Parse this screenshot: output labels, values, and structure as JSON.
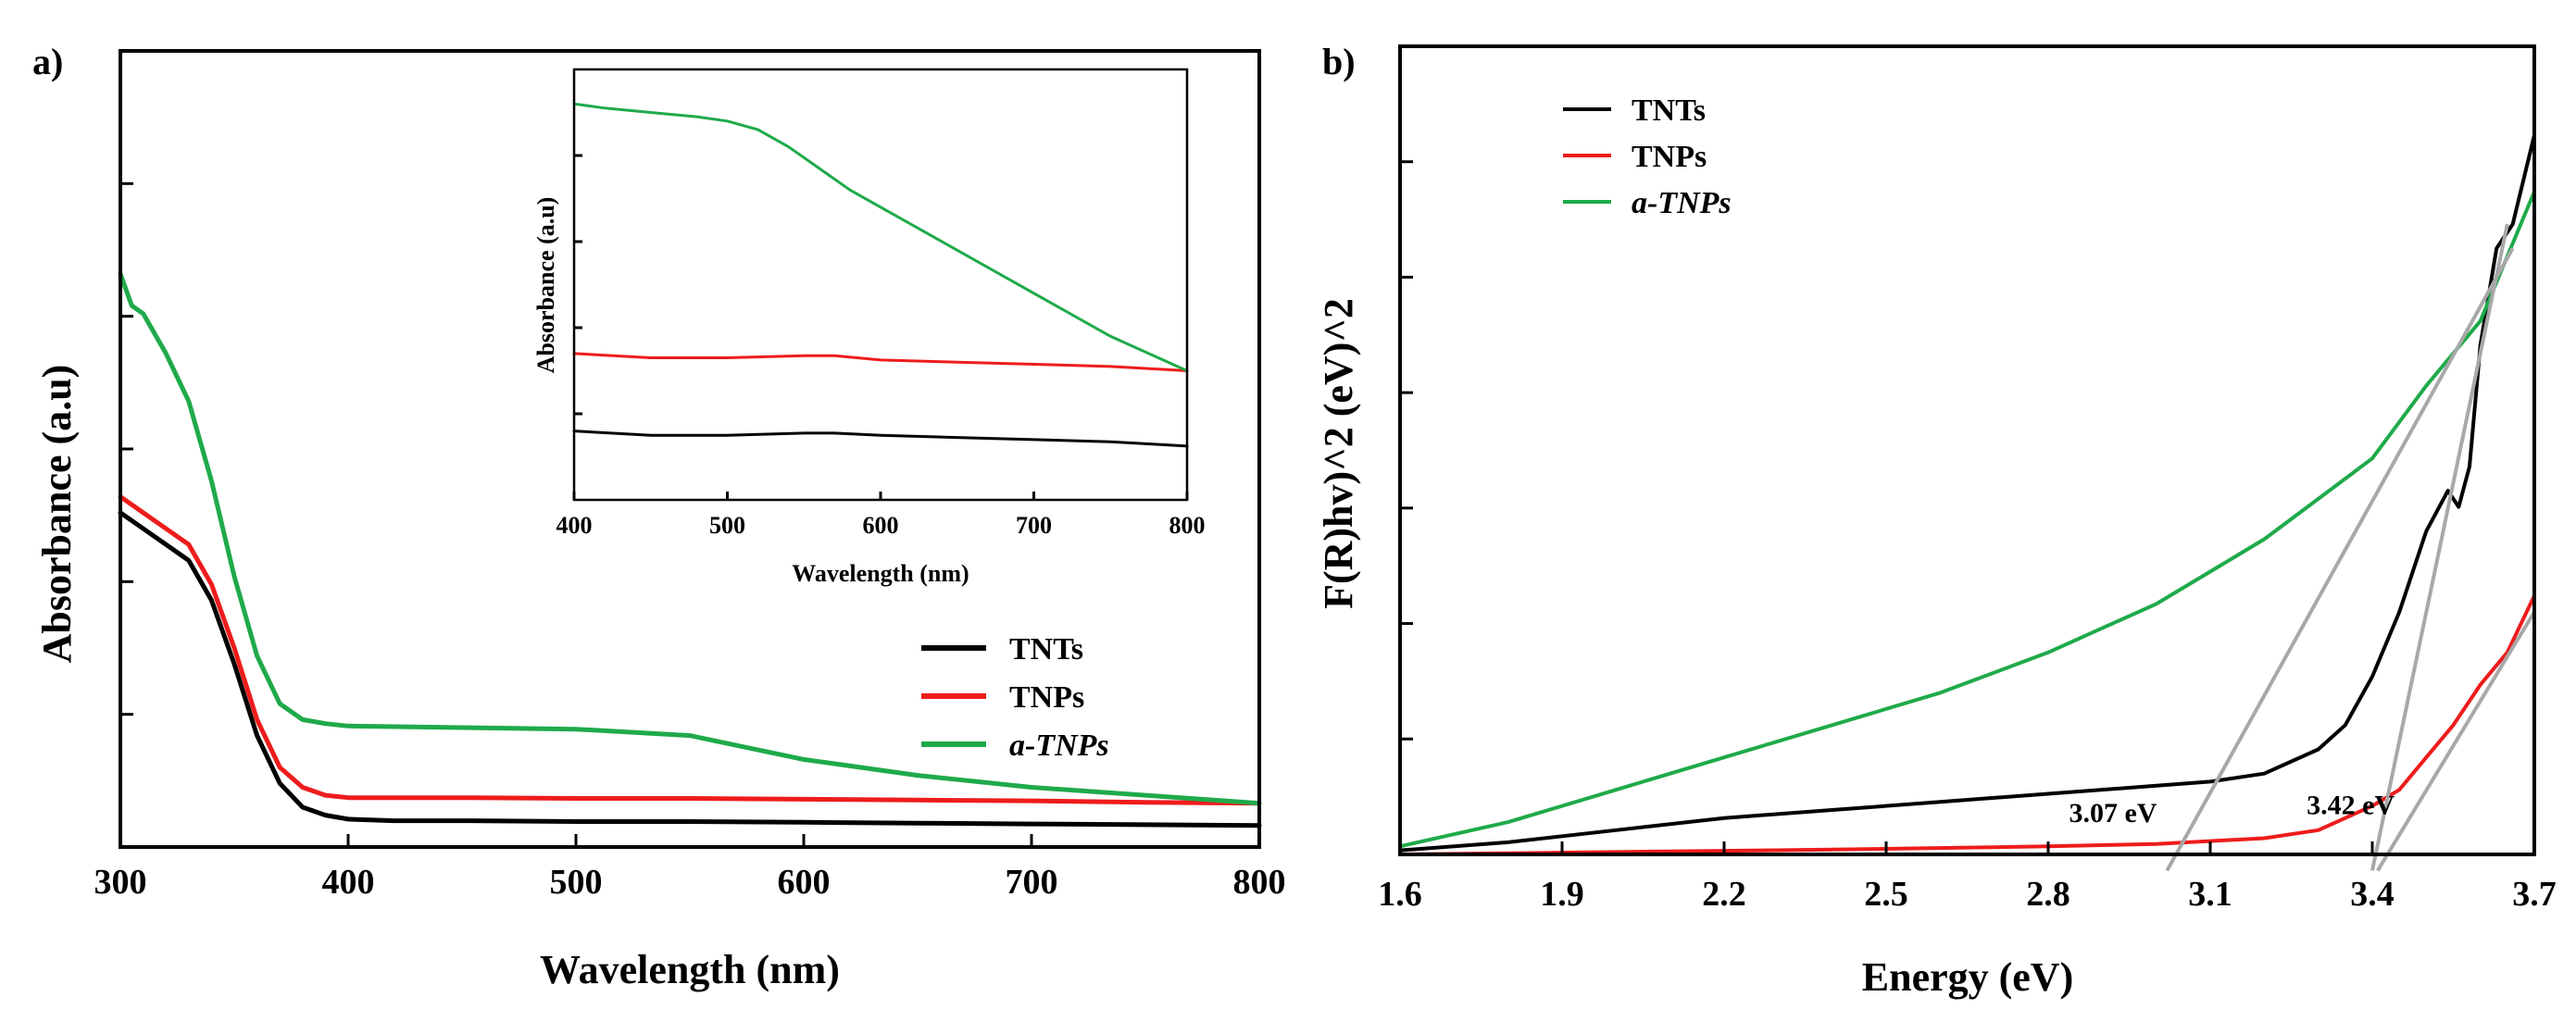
{
  "colors": {
    "TNTs": "#000000",
    "TNPs": "#ee1c1c",
    "a-TNPs": "#1faa4a",
    "fit_line": "#a8a8a8",
    "axis": "#000000"
  },
  "chart_data": [
    {
      "id": "panel-a",
      "type": "line",
      "panel_label": "a)",
      "title": "",
      "xlabel": "Wavelength (nm)",
      "ylabel": "Absorbance (a.u)",
      "xlim": [
        300,
        800
      ],
      "ylim": [
        0,
        1.0
      ],
      "xticks": [
        300,
        400,
        500,
        600,
        700,
        800
      ],
      "y_tick_labels_shown": false,
      "legend": {
        "placement": "right-middle",
        "entries": [
          "TNTs",
          "TNPs",
          "a-TNPs"
        ]
      },
      "series": [
        {
          "name": "TNTs",
          "color": "#000000",
          "x": [
            300,
            310,
            320,
            330,
            340,
            350,
            360,
            370,
            380,
            390,
            400,
            420,
            450,
            500,
            550,
            600,
            650,
            700,
            750,
            800
          ],
          "y": [
            0.42,
            0.4,
            0.38,
            0.36,
            0.31,
            0.23,
            0.14,
            0.08,
            0.05,
            0.04,
            0.035,
            0.033,
            0.033,
            0.032,
            0.032,
            0.031,
            0.03,
            0.029,
            0.028,
            0.027
          ]
        },
        {
          "name": "TNPs",
          "color": "#ee1c1c",
          "x": [
            300,
            310,
            320,
            330,
            340,
            350,
            360,
            370,
            380,
            390,
            400,
            450,
            500,
            550,
            600,
            650,
            700,
            750,
            800
          ],
          "y": [
            0.44,
            0.42,
            0.4,
            0.38,
            0.33,
            0.25,
            0.16,
            0.1,
            0.075,
            0.065,
            0.062,
            0.062,
            0.061,
            0.061,
            0.06,
            0.059,
            0.058,
            0.056,
            0.055
          ]
        },
        {
          "name": "a-TNPs",
          "color": "#1faa4a",
          "x": [
            300,
            305,
            310,
            320,
            330,
            340,
            350,
            360,
            370,
            380,
            390,
            400,
            450,
            500,
            550,
            600,
            650,
            700,
            750,
            800
          ],
          "y": [
            0.72,
            0.68,
            0.67,
            0.62,
            0.56,
            0.46,
            0.34,
            0.24,
            0.18,
            0.16,
            0.155,
            0.152,
            0.15,
            0.148,
            0.14,
            0.11,
            0.09,
            0.075,
            0.065,
            0.055
          ]
        }
      ],
      "inset": {
        "type": "line",
        "xlabel": "Wavelength (nm)",
        "ylabel": "Absorbance (a.u)",
        "xlim": [
          400,
          800
        ],
        "ylim": [
          0,
          1.0
        ],
        "xticks": [
          400,
          500,
          600,
          700,
          800
        ],
        "series": [
          {
            "name": "TNTs",
            "color": "#000000",
            "x": [
              400,
              450,
              500,
              550,
              570,
              600,
              650,
              700,
              750,
              800
            ],
            "y": [
              0.16,
              0.15,
              0.15,
              0.155,
              0.155,
              0.15,
              0.145,
              0.14,
              0.135,
              0.125
            ]
          },
          {
            "name": "TNPs",
            "color": "#ee1c1c",
            "x": [
              400,
              450,
              500,
              550,
              570,
              600,
              650,
              700,
              750,
              800
            ],
            "y": [
              0.34,
              0.33,
              0.33,
              0.335,
              0.335,
              0.325,
              0.32,
              0.315,
              0.31,
              0.3
            ]
          },
          {
            "name": "a-TNPs",
            "color": "#1faa4a",
            "x": [
              400,
              420,
              450,
              480,
              500,
              520,
              540,
              560,
              580,
              600,
              650,
              700,
              750,
              800
            ],
            "y": [
              0.92,
              0.91,
              0.9,
              0.89,
              0.88,
              0.86,
              0.82,
              0.77,
              0.72,
              0.68,
              0.58,
              0.48,
              0.38,
              0.3
            ]
          }
        ]
      }
    },
    {
      "id": "panel-b",
      "type": "line",
      "panel_label": "b)",
      "title": "",
      "xlabel": "Energy (eV)",
      "ylabel": "F(R)hv)^2  (eV)^2",
      "xlim": [
        1.6,
        3.7
      ],
      "ylim": [
        0,
        1.0
      ],
      "xticks": [
        "1.6",
        "1.9",
        "2.2",
        "2.5",
        "2.8",
        "3.1",
        "3.4",
        "3.7"
      ],
      "y_tick_labels_shown": false,
      "legend": {
        "placement": "top-left",
        "entries": [
          "TNTs",
          "TNPs",
          "a-TNPs"
        ]
      },
      "annotations": [
        {
          "text": "3.07 eV",
          "x": 2.92,
          "y": 0.04
        },
        {
          "text": "3.42 eV",
          "x": 3.36,
          "y": 0.05
        }
      ],
      "series": [
        {
          "name": "TNTs",
          "color": "#000000",
          "x": [
            1.6,
            1.8,
            2.0,
            2.2,
            2.4,
            2.6,
            2.8,
            3.0,
            3.1,
            3.2,
            3.3,
            3.35,
            3.4,
            3.45,
            3.5,
            3.54,
            3.56,
            3.58,
            3.6,
            3.63,
            3.66,
            3.7
          ],
          "y": [
            0.005,
            0.015,
            0.03,
            0.045,
            0.055,
            0.065,
            0.075,
            0.085,
            0.09,
            0.1,
            0.13,
            0.16,
            0.22,
            0.3,
            0.4,
            0.45,
            0.43,
            0.48,
            0.63,
            0.75,
            0.78,
            0.89
          ]
        },
        {
          "name": "TNPs",
          "color": "#ee1c1c",
          "x": [
            1.6,
            2.0,
            2.4,
            2.8,
            3.0,
            3.2,
            3.3,
            3.4,
            3.45,
            3.5,
            3.55,
            3.6,
            3.65,
            3.7
          ],
          "y": [
            0.0,
            0.003,
            0.006,
            0.01,
            0.013,
            0.02,
            0.03,
            0.06,
            0.08,
            0.12,
            0.16,
            0.21,
            0.25,
            0.32
          ]
        },
        {
          "name": "a-TNPs",
          "color": "#1faa4a",
          "x": [
            1.6,
            1.8,
            2.0,
            2.2,
            2.4,
            2.6,
            2.8,
            2.9,
            3.0,
            3.1,
            3.2,
            3.3,
            3.4,
            3.5,
            3.55,
            3.6,
            3.65,
            3.7
          ],
          "y": [
            0.01,
            0.04,
            0.08,
            0.12,
            0.16,
            0.2,
            0.25,
            0.28,
            0.31,
            0.35,
            0.39,
            0.44,
            0.49,
            0.58,
            0.62,
            0.66,
            0.74,
            0.82
          ]
        }
      ],
      "fit_lines": [
        {
          "name": "fit-3.07",
          "x": [
            3.02,
            3.66
          ],
          "y": [
            -0.02,
            0.75
          ]
        },
        {
          "name": "fit-3.42-TNTs",
          "x": [
            3.4,
            3.65
          ],
          "y": [
            -0.02,
            0.78
          ]
        },
        {
          "name": "fit-3.42-TNPs",
          "x": [
            3.41,
            3.7
          ],
          "y": [
            -0.02,
            0.3
          ]
        }
      ]
    }
  ]
}
